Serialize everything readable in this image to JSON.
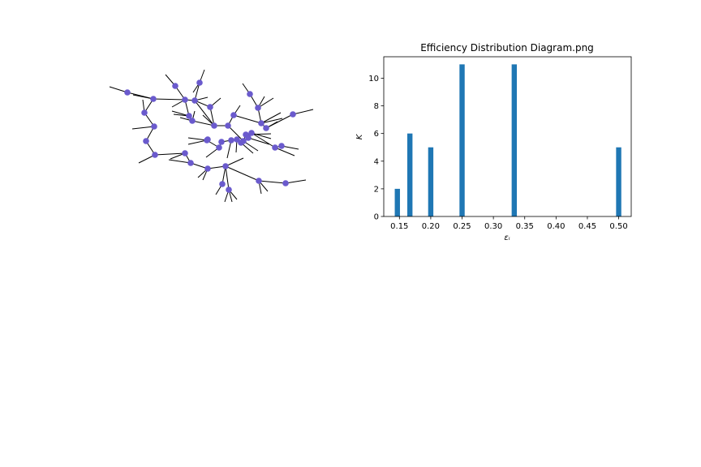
{
  "chart_data": [
    {
      "type": "network",
      "node_color": "#6a5acd",
      "edge_color": "#000000",
      "node_count": 46
    },
    {
      "type": "bar",
      "title": "Efficiency Distribution Diagram.png",
      "xlabel": "εᵢ",
      "ylabel": "K",
      "x": [
        0.1467,
        0.1667,
        0.2,
        0.25,
        0.3333,
        0.5
      ],
      "values": [
        2,
        6,
        5,
        11,
        11,
        5
      ],
      "xlim": [
        0.125,
        0.52
      ],
      "ylim": [
        0,
        11.55
      ],
      "xticks": [
        0.15,
        0.2,
        0.25,
        0.3,
        0.35,
        0.4,
        0.45,
        0.5
      ],
      "xtick_labels": [
        "0.15",
        "0.20",
        "0.25",
        "0.30",
        "0.35",
        "0.40",
        "0.45",
        "0.50"
      ],
      "yticks": [
        0,
        2,
        4,
        6,
        8,
        10
      ],
      "ytick_labels": [
        "0",
        "2",
        "4",
        "6",
        "8",
        "10"
      ],
      "bar_width": 0.0083,
      "bar_color": "#1f77b4",
      "grid": false,
      "legend": "none"
    }
  ]
}
